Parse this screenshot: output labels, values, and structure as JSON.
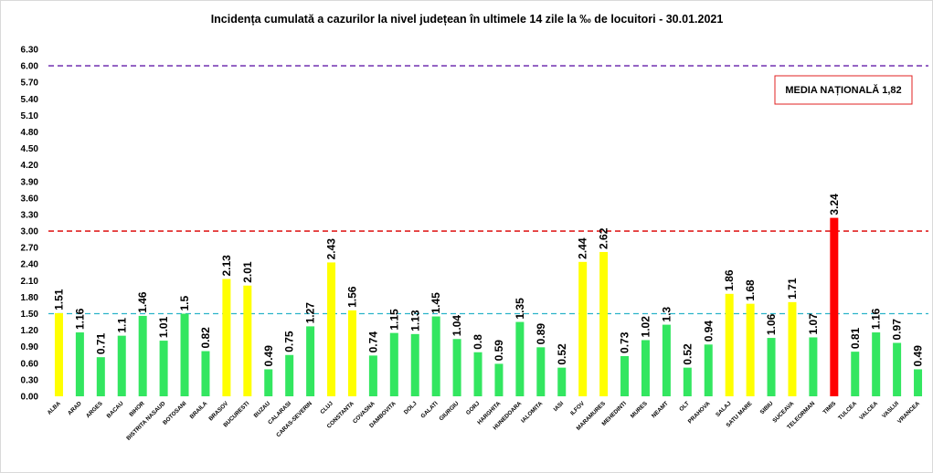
{
  "chart_data": {
    "type": "bar",
    "title": "Incidența cumulată a cazurilor la nivel județean în ultimele 14 zile la ‰ de locuitori - 30.01.2021",
    "xlabel": "",
    "ylabel": "",
    "ylim": [
      0,
      6.3
    ],
    "yticks": [
      "0.00",
      "0.30",
      "0.60",
      "0.90",
      "1.20",
      "1.50",
      "1.80",
      "2.10",
      "2.40",
      "2.70",
      "3.00",
      "3.30",
      "3.60",
      "3.90",
      "4.20",
      "4.50",
      "4.80",
      "5.10",
      "5.40",
      "5.70",
      "6.00",
      "6.30"
    ],
    "grid": false,
    "categories": [
      "ALBA",
      "ARAD",
      "ARGES",
      "BACAU",
      "BIHOR",
      "BISTRITA NASAUD",
      "BOTOSANI",
      "BRAILA",
      "BRASOV",
      "BUCURESTI",
      "BUZAU",
      "CALARASI",
      "CARAS-SEVERIN",
      "CLUJ",
      "CONSTANTA",
      "COVASNA",
      "DAMBOVITA",
      "DOLJ",
      "GALATI",
      "GIURGIU",
      "GORJ",
      "HARGHITA",
      "HUNEDOARA",
      "IALOMITA",
      "IASI",
      "ILFOV",
      "MARAMURES",
      "MEHEDINTI",
      "MURES",
      "NEAMT",
      "OLT",
      "PRAHOVA",
      "SALAJ",
      "SATU MARE",
      "SIBIU",
      "SUCEAVA",
      "TELEORMAN",
      "TIMIS",
      "TULCEA",
      "VALCEA",
      "VASLUI",
      "VRANCEA"
    ],
    "values": [
      1.51,
      1.16,
      0.71,
      1.1,
      1.46,
      1.01,
      1.5,
      0.82,
      2.13,
      2.01,
      0.49,
      0.75,
      1.27,
      2.43,
      1.56,
      0.74,
      1.15,
      1.13,
      1.45,
      1.04,
      0.8,
      0.59,
      1.35,
      0.89,
      0.52,
      2.44,
      2.62,
      0.73,
      1.02,
      1.3,
      0.52,
      0.94,
      1.86,
      1.68,
      1.06,
      1.71,
      1.07,
      3.24,
      0.81,
      1.16,
      0.97,
      0.49
    ],
    "value_labels": [
      "1.51",
      "1.16",
      "0.71",
      "1.1",
      "1.46",
      "1.01",
      "1.5",
      "0.82",
      "2.13",
      "2.01",
      "0.49",
      "0.75",
      "1.27",
      "2.43",
      "1.56",
      "0.74",
      "1.15",
      "1.13",
      "1.45",
      "1.04",
      "0.8",
      "0.59",
      "1.35",
      "0.89",
      "0.52",
      "2.44",
      "2.62",
      "0.73",
      "1.02",
      "1.3",
      "0.52",
      "0.94",
      "1.86",
      "1.68",
      "1.06",
      "1.71",
      "1.07",
      "3.24",
      "0.81",
      "1.16",
      "0.97",
      "0.49"
    ],
    "bar_colors": {
      "below_1_5": "#33e660",
      "between_1_5_and_3": "#ffff00",
      "above_3": "#ff0000"
    },
    "thresholds": [
      {
        "value": 1.5,
        "color": "#2ab3c9",
        "style": "dashed"
      },
      {
        "value": 3.0,
        "color": "#e02020",
        "style": "dashed"
      },
      {
        "value": 6.0,
        "color": "#7b3fb5",
        "style": "dashed"
      }
    ],
    "annotation": {
      "text": "MEDIA NAȚIONALĂ  1,82",
      "border_color": "#e02020"
    }
  }
}
